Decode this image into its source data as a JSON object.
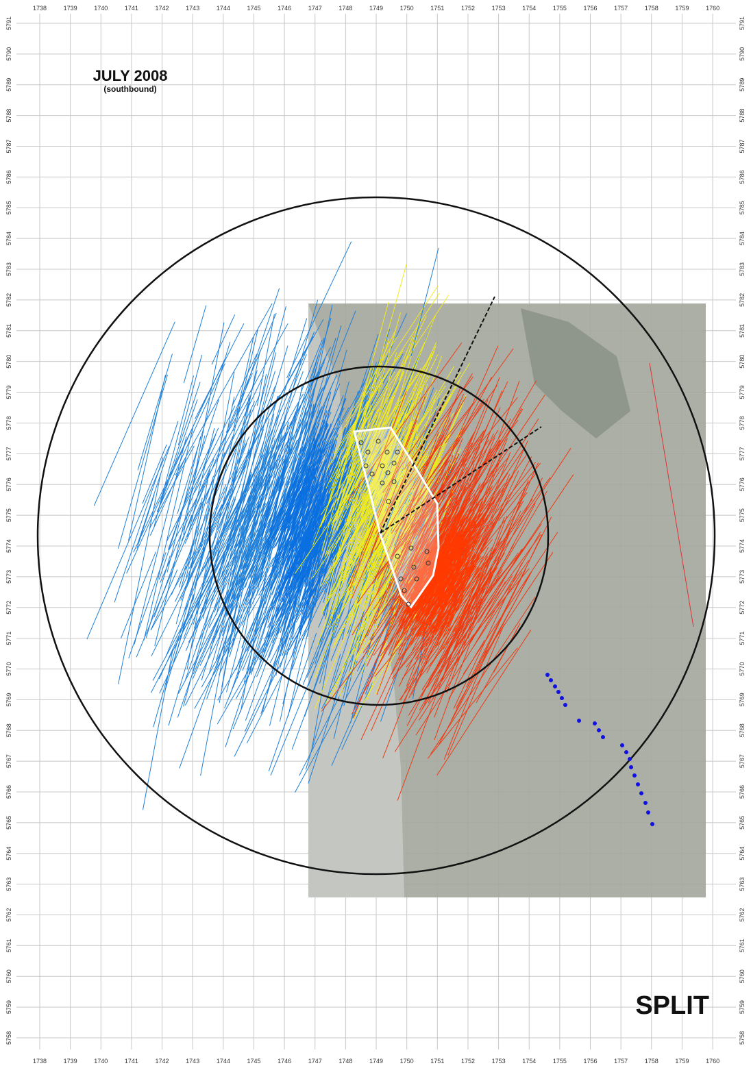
{
  "header": {
    "title": "JULY 2008",
    "subtitle": "(southbound)"
  },
  "label": "SPLIT",
  "grid": {
    "x_labels": [
      1738,
      1739,
      1740,
      1741,
      1742,
      1743,
      1744,
      1745,
      1746,
      1747,
      1748,
      1749,
      1750,
      1751,
      1752,
      1753,
      1754,
      1755,
      1756,
      1757,
      1758,
      1759,
      1760
    ],
    "y_labels": [
      5791,
      5790,
      5789,
      5788,
      5787,
      5786,
      5785,
      5784,
      5783,
      5782,
      5781,
      5780,
      5779,
      5778,
      5777,
      5776,
      5775,
      5774,
      5773,
      5772,
      5771,
      5770,
      5769,
      5768,
      5767,
      5766,
      5765,
      5764,
      5763,
      5762,
      5761,
      5760,
      5759,
      5758
    ]
  }
}
